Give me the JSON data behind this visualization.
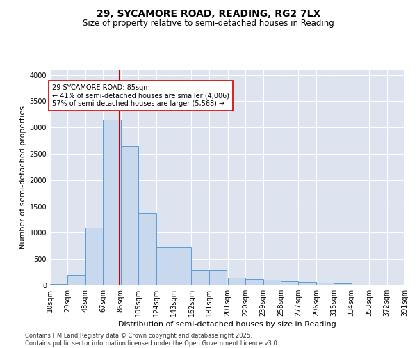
{
  "title_line1": "29, SYCAMORE ROAD, READING, RG2 7LX",
  "title_line2": "Size of property relative to semi-detached houses in Reading",
  "xlabel": "Distribution of semi-detached houses by size in Reading",
  "ylabel": "Number of semi-detached properties",
  "bar_color": "#c8d9ee",
  "bar_edge_color": "#5b9bd5",
  "background_color": "#dde4f0",
  "property_line_x": 85,
  "property_line_color": "#cc0000",
  "annotation_text": "29 SYCAMORE ROAD: 85sqm\n← 41% of semi-detached houses are smaller (4,006)\n57% of semi-detached houses are larger (5,568) →",
  "annotation_box_color": "#cc0000",
  "bin_edges": [
    10,
    29,
    48,
    67,
    86,
    105,
    124,
    143,
    162,
    181,
    201,
    220,
    239,
    258,
    277,
    296,
    315,
    334,
    353,
    372,
    391
  ],
  "bin_labels": [
    "10sqm",
    "29sqm",
    "48sqm",
    "67sqm",
    "86sqm",
    "105sqm",
    "124sqm",
    "143sqm",
    "162sqm",
    "181sqm",
    "201sqm",
    "220sqm",
    "239sqm",
    "258sqm",
    "277sqm",
    "296sqm",
    "315sqm",
    "334sqm",
    "353sqm",
    "372sqm",
    "391sqm"
  ],
  "bar_heights": [
    30,
    200,
    1100,
    3150,
    2650,
    1380,
    730,
    730,
    290,
    290,
    150,
    120,
    100,
    80,
    60,
    50,
    40,
    15,
    5,
    3,
    0
  ],
  "ylim": [
    0,
    4100
  ],
  "yticks": [
    0,
    500,
    1000,
    1500,
    2000,
    2500,
    3000,
    3500,
    4000
  ],
  "footer_text": "Contains HM Land Registry data © Crown copyright and database right 2025.\nContains public sector information licensed under the Open Government Licence v3.0.",
  "title_fontsize": 10,
  "subtitle_fontsize": 8.5,
  "axis_label_fontsize": 8,
  "tick_fontsize": 7,
  "footer_fontsize": 6,
  "annotation_fontsize": 7
}
